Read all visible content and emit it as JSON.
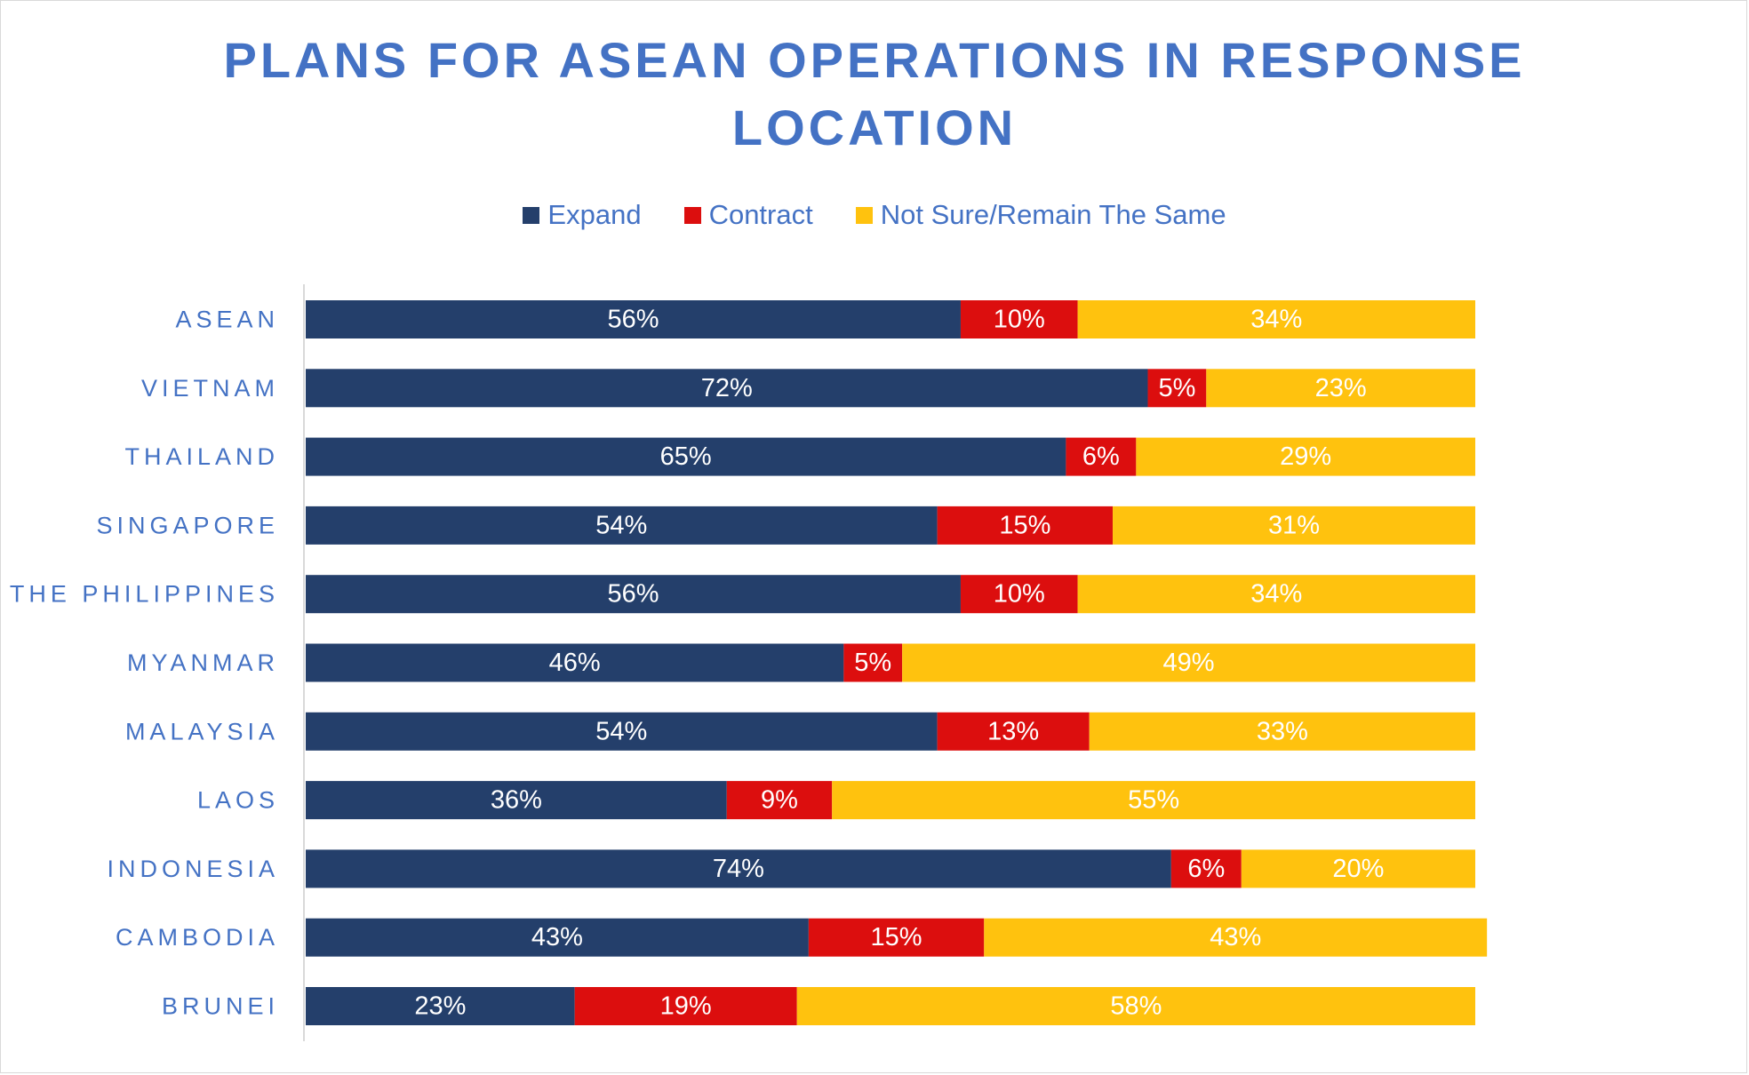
{
  "chart_data": {
    "type": "bar",
    "orientation": "horizontal",
    "stacked": true,
    "title_lines": [
      "PLANS FOR ASEAN OPERATIONS IN RESPONSE",
      "LOCATION"
    ],
    "categories": [
      "ASEAN",
      "VIETNAM",
      "THAILAND",
      "SINGAPORE",
      "THE PHILIPPINES",
      "MYANMAR",
      "MALAYSIA",
      "LAOS",
      "INDONESIA",
      "CAMBODIA",
      "BRUNEI"
    ],
    "series": [
      {
        "name": "Expand",
        "color": "#243f6b",
        "values": [
          56,
          72,
          65,
          54,
          56,
          46,
          54,
          36,
          74,
          43,
          23
        ],
        "labels": [
          "56%",
          "72%",
          "65%",
          "54%",
          "56%",
          "46%",
          "54%",
          "36%",
          "74%",
          "43%",
          "23%"
        ]
      },
      {
        "name": "Contract",
        "color": "#dc0e0e",
        "values": [
          10,
          5,
          6,
          15,
          10,
          5,
          13,
          9,
          6,
          15,
          19
        ],
        "labels": [
          "10%",
          "5%",
          "6%",
          "15%",
          "10%",
          "5%",
          "13%",
          "9%",
          "6%",
          "15%",
          "19%"
        ]
      },
      {
        "name": "Not Sure/Remain The Same",
        "color": "#ffc20e",
        "values": [
          34,
          23,
          29,
          31,
          34,
          49,
          33,
          55,
          20,
          43,
          58
        ],
        "labels": [
          "34%",
          "23%",
          "29%",
          "31%",
          "34%",
          "49%",
          "33%",
          "55%",
          "20%",
          "43%",
          "58%"
        ]
      }
    ],
    "xlim": [
      0,
      100
    ],
    "grid": false,
    "legend_position": "top",
    "axis_line_color": "#d9d9d9",
    "text_color": "#4472c4"
  }
}
